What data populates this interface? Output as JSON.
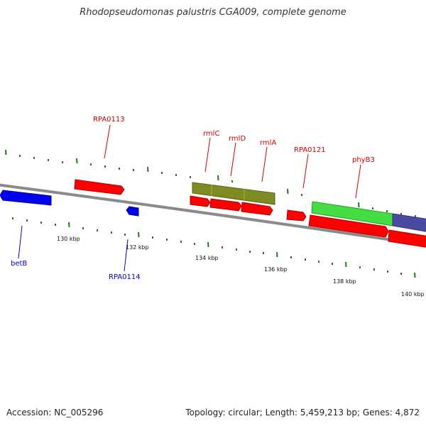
{
  "title": "Rhodopseudomonas palustris CGA009, complete genome",
  "accession": "Accession: NC_005296",
  "summary": "Topology: circular; Length: 5,459,213 bp; Genes: 4,872",
  "colors": {
    "forward_label": "#cc0000",
    "reverse_label": "#0000bb",
    "tick": "#227722",
    "backbone": "#808080"
  },
  "scale_labels": [
    "130 kbp",
    "132 kbp",
    "134 kbp",
    "136 kbp",
    "138 kbp",
    "140 kbp"
  ],
  "gene_labels": {
    "RPA0113": "RPA0113",
    "rmlC": "rmlC",
    "rmlD": "rmlD",
    "rmlA": "rmlA",
    "RPA0121": "RPA0121",
    "phyB3": "phyB3",
    "betB": "betB",
    "RPA0114": "RPA0114"
  }
}
